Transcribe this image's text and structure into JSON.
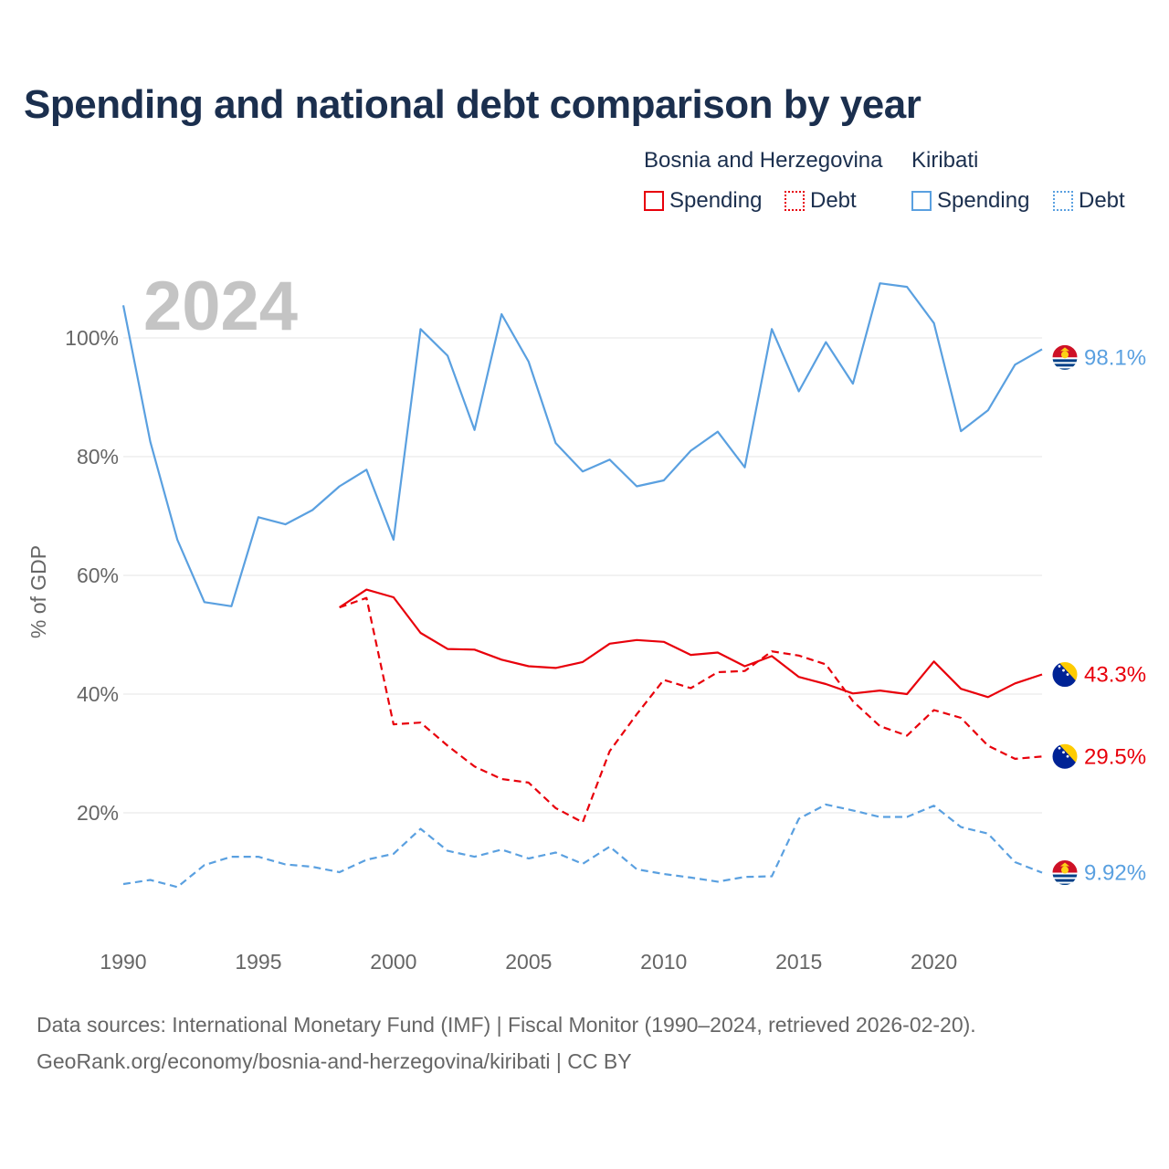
{
  "title": "Spending and national debt comparison by year",
  "legend": {
    "groups": [
      {
        "name": "Bosnia and Herzegovina",
        "color": "#e8000b",
        "items": [
          {
            "label": "Spending",
            "style": "solid"
          },
          {
            "label": "Debt",
            "style": "dotted"
          }
        ]
      },
      {
        "name": "Kiribati",
        "color": "#5aa0e0",
        "items": [
          {
            "label": "Spending",
            "style": "solid"
          },
          {
            "label": "Debt",
            "style": "dotted"
          }
        ]
      }
    ]
  },
  "year_label": "2024",
  "footer": {
    "line1": "Data sources: International Monetary Fund (IMF) | Fiscal Monitor (1990–2024, retrieved 2026-02-20).",
    "line2": "GeoRank.org/economy/bosnia-and-herzegovina/kiribati | CC BY"
  },
  "chart_data": {
    "type": "line",
    "title": "Spending and national debt comparison by year",
    "xlabel": "",
    "ylabel": "% of GDP",
    "xlim": [
      1990,
      2024
    ],
    "ylim": [
      0,
      110
    ],
    "x_ticks": [
      1990,
      1995,
      2000,
      2005,
      2010,
      2015,
      2020
    ],
    "y_ticks": [
      20,
      40,
      60,
      80,
      100
    ],
    "y_tick_labels": [
      "20%",
      "40%",
      "60%",
      "80%",
      "100%"
    ],
    "grid": true,
    "series": [
      {
        "name": "Kiribati Spending",
        "country": "Kiribati",
        "color": "#5aa0e0",
        "dash": "solid",
        "x": [
          1990,
          1991,
          1992,
          1993,
          1994,
          1995,
          1996,
          1997,
          1998,
          1999,
          2000,
          2001,
          2002,
          2003,
          2004,
          2005,
          2006,
          2007,
          2008,
          2009,
          2010,
          2011,
          2012,
          2013,
          2014,
          2015,
          2016,
          2017,
          2018,
          2019,
          2020,
          2021,
          2022,
          2023,
          2024
        ],
        "values": [
          105.5,
          82.5,
          66,
          55.5,
          54.8,
          69.8,
          68.6,
          71,
          75,
          77.8,
          66,
          101.5,
          97,
          84.5,
          104,
          96,
          82.3,
          77.5,
          79.5,
          75,
          76,
          81,
          84.2,
          78.2,
          101.5,
          91,
          99.3,
          92.3,
          109.2,
          108.6,
          102.5,
          84.3,
          87.8,
          95.5,
          98.1
        ],
        "end_label": "98.1%"
      },
      {
        "name": "Bosnia and Herzegovina Spending",
        "country": "Bosnia and Herzegovina",
        "color": "#e8000b",
        "dash": "solid",
        "x": [
          1998,
          1999,
          2000,
          2001,
          2002,
          2003,
          2004,
          2005,
          2006,
          2007,
          2008,
          2009,
          2010,
          2011,
          2012,
          2013,
          2014,
          2015,
          2016,
          2017,
          2018,
          2019,
          2020,
          2021,
          2022,
          2023,
          2024
        ],
        "values": [
          54.6,
          57.6,
          56.3,
          50.3,
          47.6,
          47.5,
          45.8,
          44.7,
          44.4,
          45.4,
          48.5,
          49.1,
          48.8,
          46.6,
          47.0,
          44.7,
          46.4,
          42.9,
          41.7,
          40.1,
          40.6,
          40.0,
          45.5,
          40.9,
          39.5,
          41.8,
          43.3
        ],
        "end_label": "43.3%"
      },
      {
        "name": "Bosnia and Herzegovina Debt",
        "country": "Bosnia and Herzegovina",
        "color": "#e8000b",
        "dash": "dashed",
        "x": [
          1998,
          1999,
          2000,
          2001,
          2002,
          2003,
          2004,
          2005,
          2006,
          2007,
          2008,
          2009,
          2010,
          2011,
          2012,
          2013,
          2014,
          2015,
          2016,
          2017,
          2018,
          2019,
          2020,
          2021,
          2022,
          2023,
          2024
        ],
        "values": [
          54.6,
          56.2,
          34.9,
          35.2,
          31.3,
          27.8,
          25.7,
          25.1,
          20.8,
          18.4,
          30.4,
          36.6,
          42.4,
          41.0,
          43.7,
          43.9,
          47.2,
          46.5,
          45.0,
          38.8,
          34.6,
          33.0,
          37.3,
          36.0,
          31.3,
          29.1,
          29.5
        ],
        "end_label": "29.5%"
      },
      {
        "name": "Kiribati Debt",
        "country": "Kiribati",
        "color": "#5aa0e0",
        "dash": "dashed",
        "x": [
          1990,
          1991,
          1992,
          1993,
          1994,
          1995,
          1996,
          1997,
          1998,
          1999,
          2000,
          2001,
          2002,
          2003,
          2004,
          2005,
          2006,
          2007,
          2008,
          2009,
          2010,
          2011,
          2012,
          2013,
          2014,
          2015,
          2016,
          2017,
          2018,
          2019,
          2020,
          2021,
          2022,
          2023,
          2024
        ],
        "values": [
          8.0,
          8.7,
          7.5,
          11.2,
          12.6,
          12.6,
          11.3,
          10.9,
          10.0,
          12.1,
          13.1,
          17.3,
          13.6,
          12.6,
          13.8,
          12.3,
          13.3,
          11.4,
          14.3,
          10.5,
          9.7,
          9.1,
          8.4,
          9.2,
          9.3,
          19.0,
          21.4,
          20.4,
          19.3,
          19.3,
          21.2,
          17.6,
          16.5,
          11.7,
          9.92
        ],
        "end_label": "9.92%"
      }
    ]
  }
}
